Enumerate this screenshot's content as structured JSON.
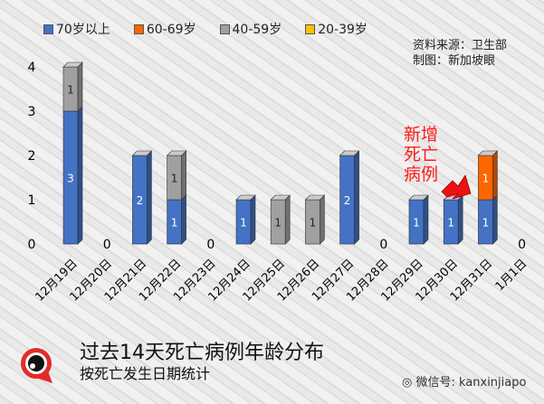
{
  "chart_data": {
    "type": "bar",
    "stacked": true,
    "categories": [
      "12月19日",
      "12月20日",
      "12月21日",
      "12月22日",
      "12月23日",
      "12月24日",
      "12月25日",
      "12月26日",
      "12月27日",
      "12月28日",
      "12月29日",
      "12月30日",
      "12月31日",
      "1月1日"
    ],
    "series": [
      {
        "name": "70岁以上",
        "color": "#4472c4",
        "values": [
          3,
          0,
          2,
          1,
          0,
          1,
          0,
          0,
          2,
          0,
          1,
          1,
          1,
          0
        ]
      },
      {
        "name": "60-69岁",
        "color": "#ff6600",
        "values": [
          0,
          0,
          0,
          0,
          0,
          0,
          0,
          0,
          0,
          0,
          0,
          0,
          1,
          0
        ]
      },
      {
        "name": "40-59岁",
        "color": "#a0a0a0",
        "values": [
          1,
          0,
          0,
          1,
          0,
          0,
          1,
          1,
          0,
          0,
          0,
          0,
          0,
          0
        ]
      },
      {
        "name": "20-39岁",
        "color": "#ffc000",
        "values": [
          0,
          0,
          0,
          0,
          0,
          0,
          0,
          0,
          0,
          0,
          0,
          0,
          0,
          0
        ]
      }
    ],
    "yticks": [
      "0",
      "1",
      "2",
      "3",
      "4"
    ],
    "ylim": [
      0,
      4
    ],
    "zero_label": "0",
    "legend": "top",
    "grid": false
  },
  "source": "资料来源：卫生部",
  "credit": "制图：新加坡眼",
  "annotation": "新增死亡病例",
  "title": "过去14天死亡病例年龄分布",
  "subtitle": "按死亡发生日期统计",
  "wechat": "微信号: kanxinjiapo"
}
